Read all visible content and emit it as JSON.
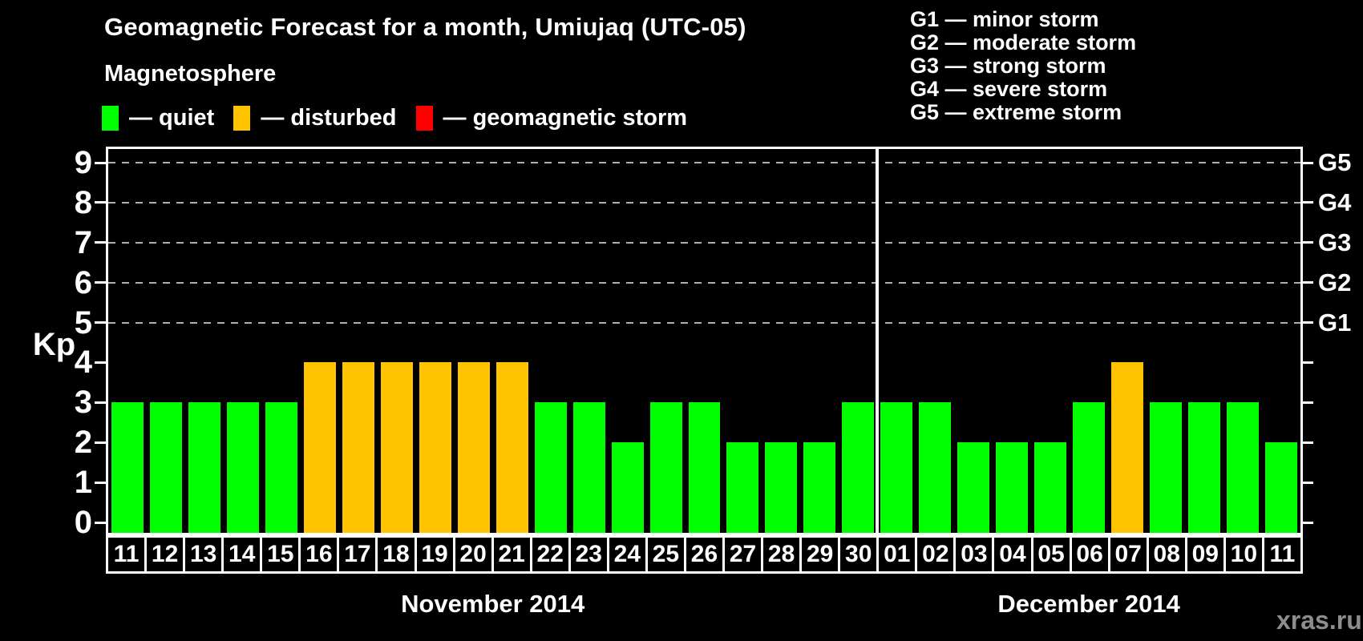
{
  "title": "Geomagnetic Forecast for a month, Umiujaq (UTC-05)",
  "subtitle": "Magnetosphere",
  "separator_dash": "—",
  "magnetosphere_legend": [
    {
      "name": "quiet",
      "color": "#00ff00"
    },
    {
      "name": "disturbed",
      "color": "#ffc400"
    },
    {
      "name": "geomagnetic storm",
      "color": "#ff0000"
    }
  ],
  "storm_scale": [
    {
      "code": "G1",
      "label": "minor storm"
    },
    {
      "code": "G2",
      "label": "moderate storm"
    },
    {
      "code": "G3",
      "label": "strong storm"
    },
    {
      "code": "G4",
      "label": "severe storm"
    },
    {
      "code": "G5",
      "label": "extreme storm"
    }
  ],
  "watermark": "xras.ru",
  "chart_data": {
    "type": "bar",
    "title": "Geomagnetic Forecast for a month, Umiujaq (UTC-05)",
    "ylabel": "Kp",
    "ylim": [
      0,
      9
    ],
    "yticks": [
      0,
      1,
      2,
      3,
      4,
      5,
      6,
      7,
      8,
      9
    ],
    "grid": "dashed horizontal lines at Kp 5 through 9",
    "legend_position": "top",
    "right_axis_labels": [
      {
        "kp": 5,
        "label": "G1"
      },
      {
        "kp": 6,
        "label": "G2"
      },
      {
        "kp": 7,
        "label": "G3"
      },
      {
        "kp": 8,
        "label": "G4"
      },
      {
        "kp": 9,
        "label": "G5"
      }
    ],
    "colors": {
      "quiet": "#00ff00",
      "disturbed": "#ffc400",
      "storm": "#ff0000"
    },
    "color_rule": {
      "quiet_max_kp": 3,
      "disturbed_kp": 4,
      "storm_min_kp": 5
    },
    "months": [
      {
        "label": "November 2014",
        "days": [
          "11",
          "12",
          "13",
          "14",
          "15",
          "16",
          "17",
          "18",
          "19",
          "20",
          "21",
          "22",
          "23",
          "24",
          "25",
          "26",
          "27",
          "28",
          "29",
          "30"
        ],
        "values": [
          3,
          3,
          3,
          3,
          3,
          4,
          4,
          4,
          4,
          4,
          4,
          3,
          3,
          2,
          3,
          3,
          2,
          2,
          2,
          3
        ]
      },
      {
        "label": "December 2014",
        "days": [
          "01",
          "02",
          "03",
          "04",
          "05",
          "06",
          "07",
          "08",
          "09",
          "10",
          "11"
        ],
        "values": [
          3,
          3,
          2,
          2,
          2,
          3,
          4,
          3,
          3,
          3,
          2
        ]
      }
    ]
  }
}
